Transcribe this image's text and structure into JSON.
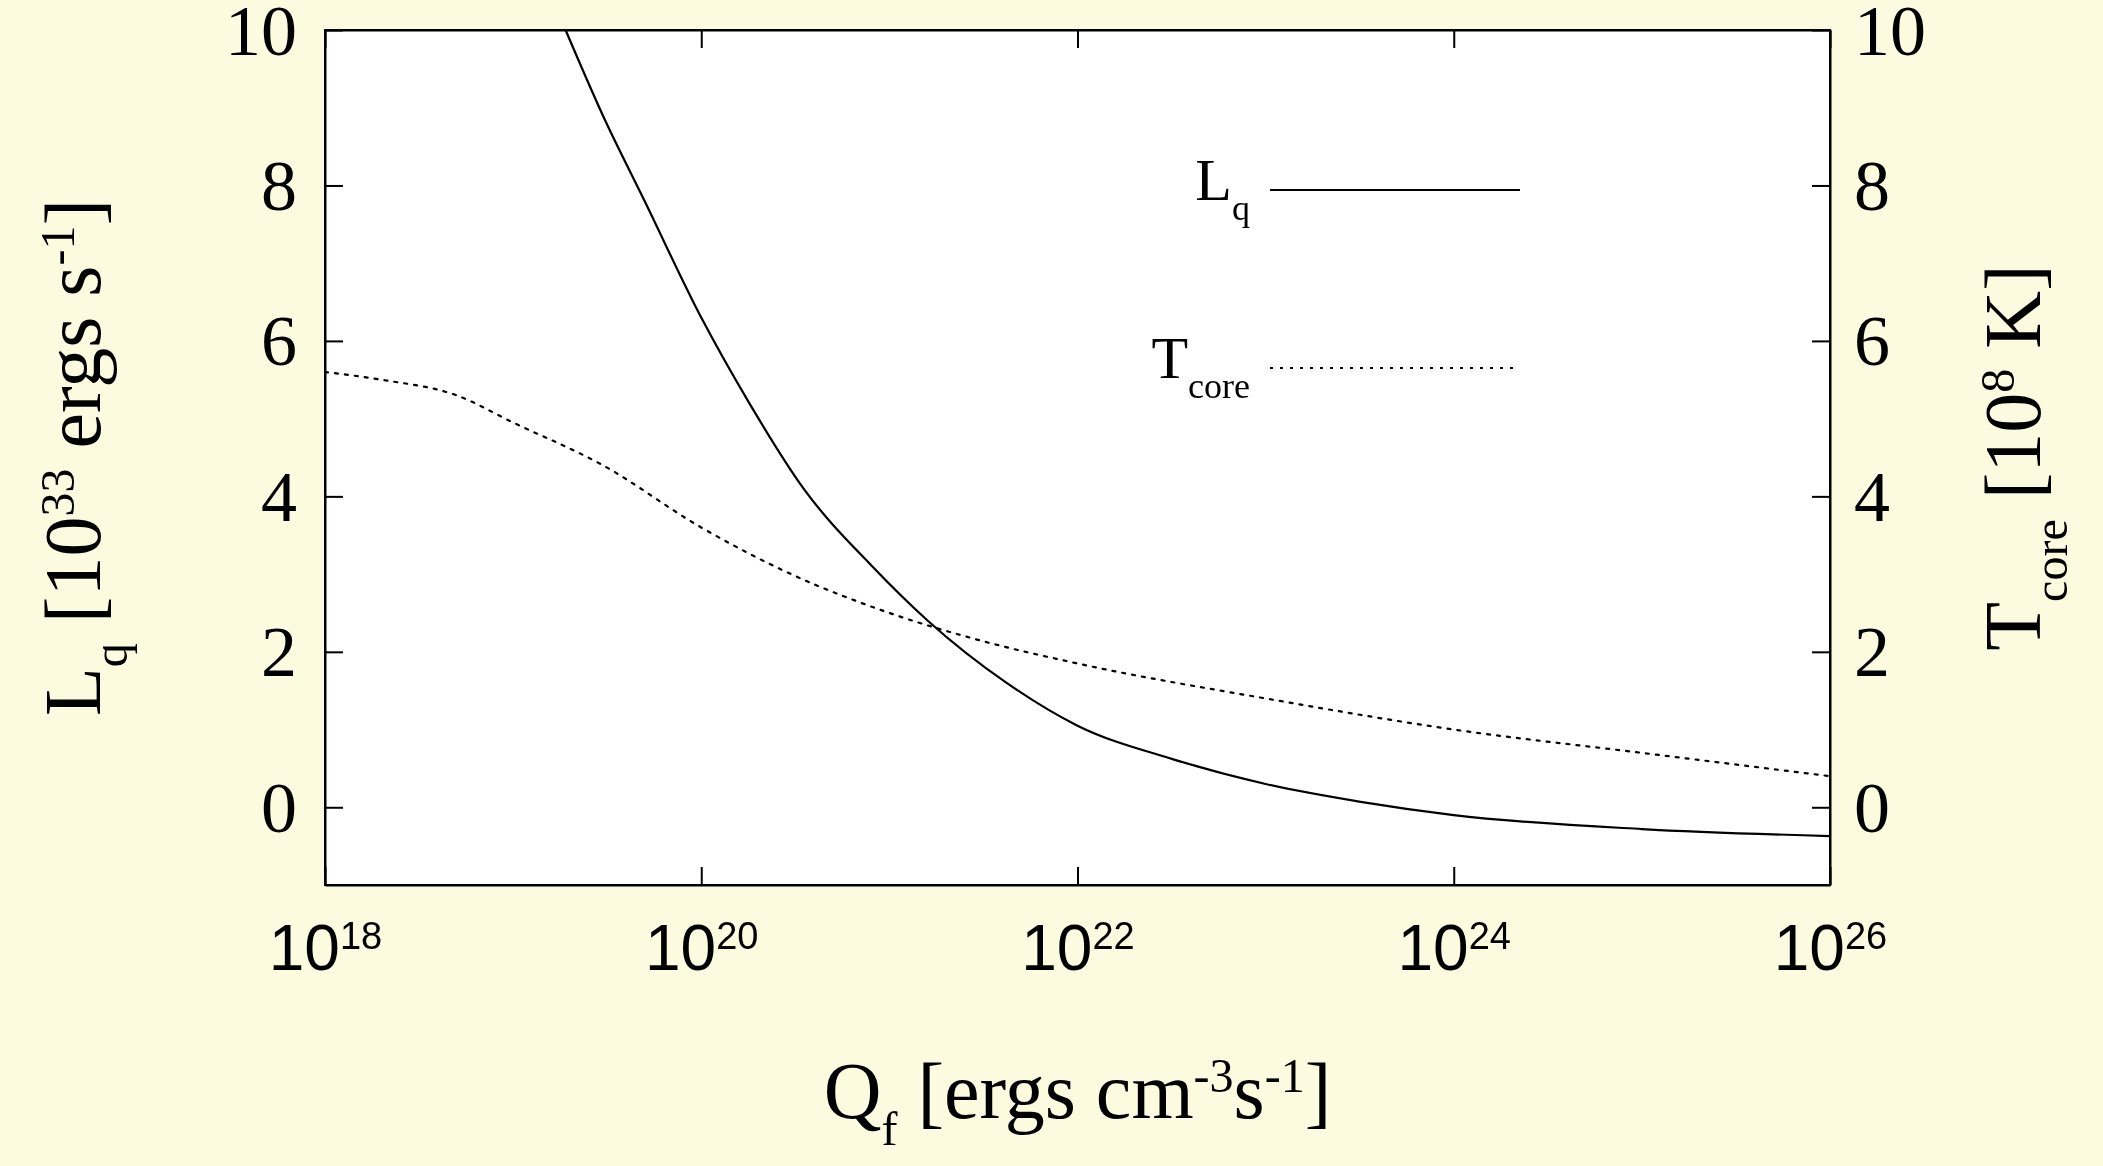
{
  "chart_data": {
    "type": "line",
    "xlabel": "Q$_{f}$ [ergs cm$^{-3}$s$^{-1}$]",
    "ylabel": "L$_{q}$ [10$^{33}$ ergs s$^{-1}$]",
    "y2label": "T$_{core}$ [10$^{8}$ K]",
    "log": "x",
    "xlim": [
      1e+18,
      1e+26
    ],
    "xticks": [
      {
        "value": 1e+18,
        "label": "10$^{18}$"
      },
      {
        "value": 1e+20,
        "label": "10$^{20}$"
      },
      {
        "value": 1e+22,
        "label": "10$^{22}$"
      },
      {
        "value": 1e+24,
        "label": "10$^{24}$"
      },
      {
        "value": 1e+26,
        "label": "10$^{26}$"
      }
    ],
    "ylim": [
      -1,
      10
    ],
    "yticks": [
      0,
      2,
      4,
      6,
      8,
      10
    ],
    "y2lim": [
      -1,
      10
    ],
    "y2ticks": [
      0,
      2,
      4,
      6,
      8,
      10
    ],
    "legend": "top right",
    "grid": false,
    "series": [
      {
        "name": "L$_{q}$",
        "color": "#000000",
        "line_style": "solid",
        "x": [
          1.9e+19,
          3e+19,
          5e+19,
          1e+20,
          1.8e+20,
          3.5e+20,
          8.1e+20,
          1.6e+21,
          4.2e+21,
          1e+22,
          3.2e+22,
          1e+23,
          3.2e+23,
          1e+24,
          1e+25,
          1e+26
        ],
        "values": [
          10,
          8.9,
          7.8,
          6.3,
          5.2,
          4.1,
          3.1,
          2.4,
          1.6,
          1.05,
          0.62,
          0.3,
          0.07,
          -0.1,
          -0.28,
          -0.37
        ]
      },
      {
        "name": "T$_{core}$",
        "color": "#000000",
        "line_style": "dotted",
        "x": [
          1e+18,
          2e+18,
          5e+18,
          1e+19,
          3e+19,
          1e+20,
          3e+20,
          1e+21,
          3e+21,
          1e+22,
          1e+23,
          1e+24,
          1e+25,
          1e+26
        ],
        "values": [
          5.6,
          5.5,
          5.3,
          4.95,
          4.4,
          3.6,
          3.0,
          2.5,
          2.15,
          1.85,
          1.4,
          1.0,
          0.7,
          0.4
        ]
      }
    ]
  }
}
